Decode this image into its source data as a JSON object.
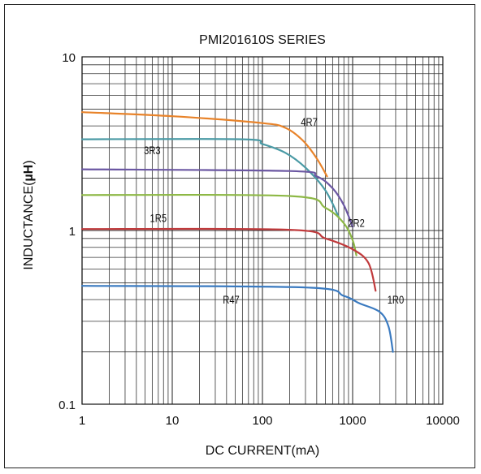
{
  "chart_data": {
    "type": "line",
    "title": "PMI201610S SERIES",
    "xlabel": "DC CURRENT(mA)",
    "ylabel_prefix": "INDUCTANCE(",
    "ylabel_unit": "µH",
    "ylabel_suffix": ")",
    "x_scale": "log",
    "y_scale": "log",
    "xlim": [
      1,
      10000
    ],
    "ylim": [
      0.1,
      10
    ],
    "x_ticks": [
      "1",
      "10",
      "100",
      "1000",
      "10000"
    ],
    "y_ticks": [
      "0.1",
      "1",
      "10"
    ],
    "grid": true,
    "series": [
      {
        "name": "4R7",
        "color": "#e8832a",
        "x": [
          1,
          10,
          100,
          180,
          280,
          400,
          520
        ],
        "y": [
          4.8,
          4.55,
          4.15,
          3.9,
          3.3,
          2.6,
          2.05
        ]
      },
      {
        "name": "3R3",
        "color": "#4a9aa5",
        "x": [
          1,
          60,
          100,
          180,
          300,
          500,
          700
        ],
        "y": [
          3.35,
          3.35,
          3.15,
          2.8,
          2.3,
          1.7,
          1.2
        ]
      },
      {
        "name": "2R2",
        "color": "#6b57a2",
        "x": [
          1,
          200,
          400,
          600,
          800,
          1000
        ],
        "y": [
          2.25,
          2.2,
          2.05,
          1.75,
          1.4,
          1.05
        ]
      },
      {
        "name": "1R5",
        "color": "#8db845",
        "x": [
          1,
          200,
          500,
          800,
          1000,
          1100
        ],
        "y": [
          1.6,
          1.58,
          1.35,
          1.1,
          0.88,
          0.72
        ]
      },
      {
        "name": "1R0",
        "color": "#c13a3c",
        "x": [
          1,
          200,
          500,
          1000,
          1500,
          1800
        ],
        "y": [
          1.02,
          1.01,
          0.9,
          0.78,
          0.65,
          0.45
        ]
      },
      {
        "name": "R47",
        "color": "#3a7ac0",
        "x": [
          1,
          300,
          800,
          1200,
          2000,
          2500,
          2800
        ],
        "y": [
          0.48,
          0.47,
          0.42,
          0.38,
          0.34,
          0.28,
          0.2
        ]
      }
    ],
    "labels": [
      {
        "text": "4R7",
        "x": 330,
        "y": 4.0
      },
      {
        "text": "3R3",
        "x": 6,
        "y": 2.75
      },
      {
        "text": "2R2",
        "x": 1100,
        "y": 1.05
      },
      {
        "text": "1R5",
        "x": 7,
        "y": 1.12
      },
      {
        "text": "1R0",
        "x": 3000,
        "y": 0.38
      },
      {
        "text": "R47",
        "x": 45,
        "y": 0.38
      }
    ]
  }
}
